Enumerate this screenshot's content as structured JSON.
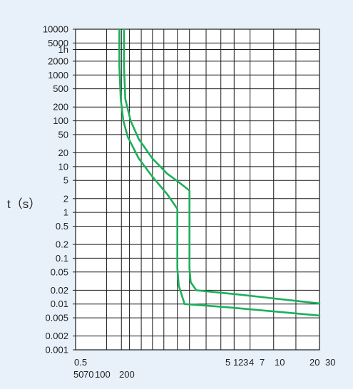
{
  "chart_data": {
    "type": "line",
    "ylabel": "t（s）",
    "y_scale": "log",
    "ylim": [
      0.001,
      10000
    ],
    "grid": true,
    "y_ticks": [
      {
        "label": "10000",
        "value": 10000
      },
      {
        "label": "5000",
        "value": 5000
      },
      {
        "label": "1h",
        "value": 3600
      },
      {
        "label": "2000",
        "value": 2000
      },
      {
        "label": "1000",
        "value": 1000
      },
      {
        "label": "500",
        "value": 500
      },
      {
        "label": "200",
        "value": 200
      },
      {
        "label": "100",
        "value": 100
      },
      {
        "label": "50",
        "value": 50
      },
      {
        "label": "20",
        "value": 20
      },
      {
        "label": "10",
        "value": 10
      },
      {
        "label": "5",
        "value": 5
      },
      {
        "label": "2",
        "value": 2
      },
      {
        "label": "1",
        "value": 1
      },
      {
        "label": "0.5",
        "value": 0.5
      },
      {
        "label": "0.2",
        "value": 0.2
      },
      {
        "label": "0.1",
        "value": 0.1
      },
      {
        "label": "0.05",
        "value": 0.05
      },
      {
        "label": "0.02",
        "value": 0.02
      },
      {
        "label": "0.01",
        "value": 0.01
      },
      {
        "label": "0.005",
        "value": 0.005
      },
      {
        "label": "0.002",
        "value": 0.002
      },
      {
        "label": "0.001",
        "value": 0.001
      }
    ],
    "x_tick_rows": [
      [
        "0.5",
        "5",
        "1",
        "2",
        "3",
        "4",
        "7",
        "10",
        "20",
        "30"
      ],
      [
        "50",
        "70",
        "100",
        "200"
      ]
    ],
    "x_scale": "log",
    "xlim": [
      0.5,
      20
    ],
    "x_gridlines": [
      0.5,
      0.8,
      1.0,
      1.13,
      1.35,
      1.6,
      1.9,
      2.33,
      2.8,
      3.6,
      4.5,
      5.5,
      7,
      10,
      14,
      20
    ],
    "series": [
      {
        "points": [
          [
            1.04,
            10000
          ],
          [
            1.04,
            1500
          ],
          [
            1.06,
            300
          ],
          [
            1.15,
            100
          ],
          [
            1.3,
            40
          ],
          [
            1.6,
            15
          ],
          [
            2.0,
            7
          ],
          [
            2.4,
            4.5
          ],
          [
            2.8,
            3
          ],
          [
            2.8,
            0.06
          ],
          [
            2.85,
            0.03
          ],
          [
            3.1,
            0.02
          ],
          [
            6,
            0.016
          ],
          [
            20,
            0.0103
          ]
        ]
      },
      {
        "points": [
          [
            0.97,
            10000
          ],
          [
            0.97,
            1500
          ],
          [
            0.99,
            300
          ],
          [
            1.03,
            100
          ],
          [
            1.1,
            45
          ],
          [
            1.3,
            15
          ],
          [
            1.6,
            6
          ],
          [
            2.0,
            2.5
          ],
          [
            2.33,
            1.2
          ],
          [
            2.33,
            0.06
          ],
          [
            2.38,
            0.025
          ],
          [
            2.6,
            0.01
          ],
          [
            5,
            0.0085
          ],
          [
            20,
            0.0056
          ]
        ]
      }
    ],
    "line_color": "#1bb05a",
    "background": "#e8f1fa"
  }
}
